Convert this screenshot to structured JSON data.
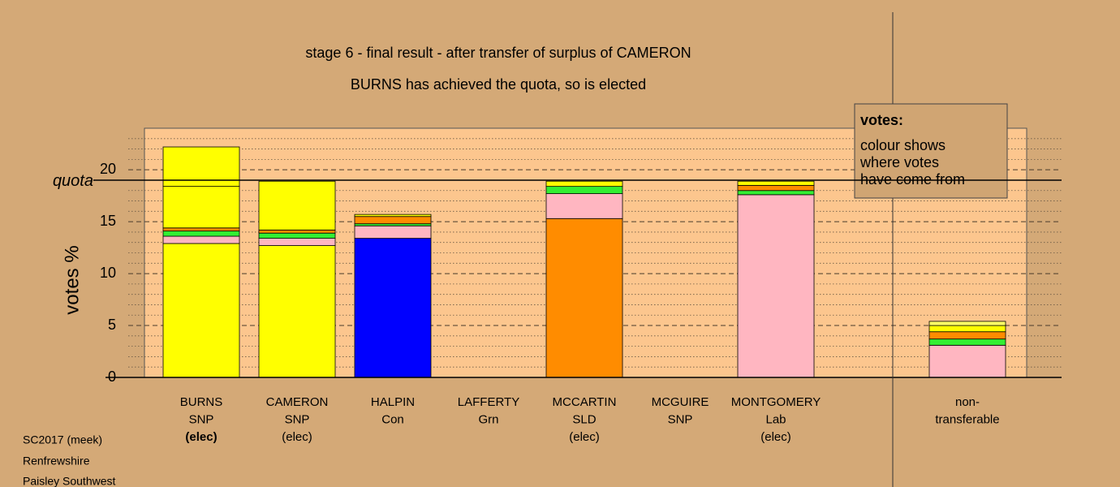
{
  "chart_data": {
    "type": "stacked-bar",
    "title": "stage 6 - final result - after transfer of surplus of CAMERON",
    "subtitle": "BURNS has achieved the quota, so is elected",
    "ylabel": "votes %",
    "ylim": [
      0,
      24
    ],
    "yticks": [
      0,
      5,
      10,
      15,
      20
    ],
    "minor_step": 1,
    "grid": true,
    "quota": 19.0,
    "quota_label": "quota",
    "categories": [
      [
        "BURNS",
        "SNP",
        "(elec)"
      ],
      [
        "CAMERON",
        "SNP",
        "(elec)"
      ],
      [
        "HALPIN",
        "Con"
      ],
      [
        "LAFFERTY",
        "Grn"
      ],
      [
        "MCCARTIN",
        "SLD",
        "(elec)"
      ],
      [
        "MCGUIRE",
        "SNP"
      ],
      [
        "MONTGOMERY",
        "Lab",
        "(elec)"
      ],
      null,
      [
        "non-",
        "transferable"
      ]
    ],
    "stacks": [
      [
        {
          "color": "#ffff00",
          "value": 12.9
        },
        {
          "color": "#ffb6c1",
          "value": 0.7
        },
        {
          "color": "#33ee33",
          "value": 0.5
        },
        {
          "color": "#ff8c00",
          "value": 0.3
        },
        {
          "color": "#ffff00",
          "value": 4.0
        },
        {
          "color": "#ffff00",
          "value": 3.8
        }
      ],
      [
        {
          "color": "#ffff00",
          "value": 12.7
        },
        {
          "color": "#ffb6c1",
          "value": 0.7
        },
        {
          "color": "#33ee33",
          "value": 0.5
        },
        {
          "color": "#ff8c00",
          "value": 0.3
        },
        {
          "color": "#ffff00",
          "value": 4.7
        }
      ],
      [
        {
          "color": "#0000ff",
          "value": 13.4
        },
        {
          "color": "#ffb6c1",
          "value": 1.2
        },
        {
          "color": "#33ee33",
          "value": 0.2
        },
        {
          "color": "#ff8c00",
          "value": 0.7
        },
        {
          "color": "#ffff00",
          "value": 0.2
        }
      ],
      [],
      [
        {
          "color": "#ff8c00",
          "value": 15.3
        },
        {
          "color": "#ffb6c1",
          "value": 2.4
        },
        {
          "color": "#33ee33",
          "value": 0.7
        },
        {
          "color": "#ffff00",
          "value": 0.5
        }
      ],
      [],
      [
        {
          "color": "#ffb6c1",
          "value": 17.6
        },
        {
          "color": "#33ee33",
          "value": 0.4
        },
        {
          "color": "#ff8c00",
          "value": 0.5
        },
        {
          "color": "#ffff00",
          "value": 0.4
        }
      ],
      [],
      [
        {
          "color": "#ffb6c1",
          "value": 3.1
        },
        {
          "color": "#33ee33",
          "value": 0.6
        },
        {
          "color": "#ff8c00",
          "value": 0.7
        },
        {
          "color": "#ffff00",
          "value": 0.6
        },
        {
          "color": "#ffff66",
          "value": 0.4
        }
      ]
    ],
    "info_box": {
      "title": "votes:",
      "lines": [
        "colour shows",
        "where votes",
        "have come from"
      ]
    },
    "footer": [
      "SC2017 (meek)",
      "Renfrewshire",
      "Paisley Southwest"
    ]
  }
}
